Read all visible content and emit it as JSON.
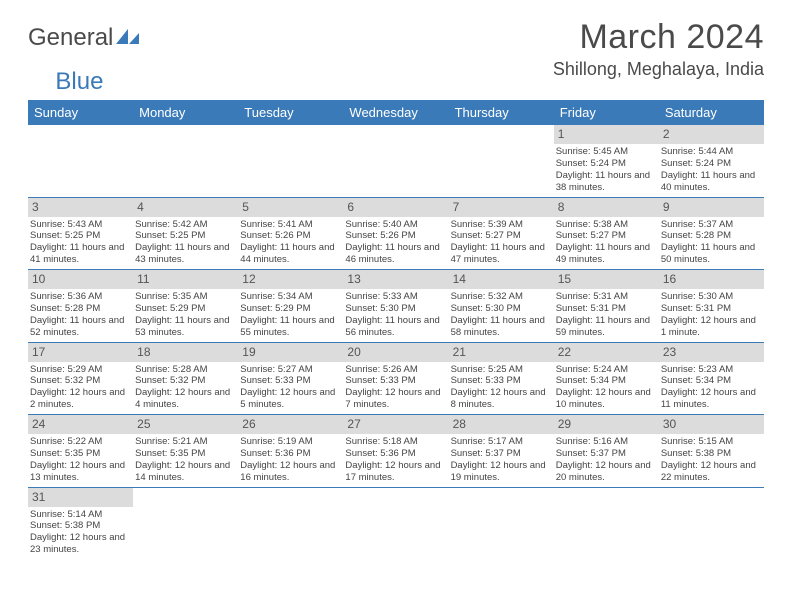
{
  "colors": {
    "header_bg": "#3a7ab8",
    "header_text": "#ffffff",
    "row_divider": "#3a7ab8",
    "daynum_bg": "#dcdcdc",
    "text": "#444444",
    "title_text": "#4a4a4a",
    "logo_blue": "#3a7ab8",
    "page_bg": "#ffffff"
  },
  "typography": {
    "font_family": "Arial, Helvetica, sans-serif",
    "month_title_size_pt": 26,
    "location_size_pt": 14,
    "dow_size_pt": 10,
    "cell_size_pt": 7,
    "daynum_size_pt": 9
  },
  "logo": {
    "line1": "General",
    "line2": "Blue"
  },
  "title": "March 2024",
  "location": "Shillong, Meghalaya, India",
  "days_of_week": [
    "Sunday",
    "Monday",
    "Tuesday",
    "Wednesday",
    "Thursday",
    "Friday",
    "Saturday"
  ],
  "weeks": [
    [
      null,
      null,
      null,
      null,
      null,
      {
        "n": "1",
        "sunrise": "Sunrise: 5:45 AM",
        "sunset": "Sunset: 5:24 PM",
        "daylight": "Daylight: 11 hours and 38 minutes."
      },
      {
        "n": "2",
        "sunrise": "Sunrise: 5:44 AM",
        "sunset": "Sunset: 5:24 PM",
        "daylight": "Daylight: 11 hours and 40 minutes."
      }
    ],
    [
      {
        "n": "3",
        "sunrise": "Sunrise: 5:43 AM",
        "sunset": "Sunset: 5:25 PM",
        "daylight": "Daylight: 11 hours and 41 minutes."
      },
      {
        "n": "4",
        "sunrise": "Sunrise: 5:42 AM",
        "sunset": "Sunset: 5:25 PM",
        "daylight": "Daylight: 11 hours and 43 minutes."
      },
      {
        "n": "5",
        "sunrise": "Sunrise: 5:41 AM",
        "sunset": "Sunset: 5:26 PM",
        "daylight": "Daylight: 11 hours and 44 minutes."
      },
      {
        "n": "6",
        "sunrise": "Sunrise: 5:40 AM",
        "sunset": "Sunset: 5:26 PM",
        "daylight": "Daylight: 11 hours and 46 minutes."
      },
      {
        "n": "7",
        "sunrise": "Sunrise: 5:39 AM",
        "sunset": "Sunset: 5:27 PM",
        "daylight": "Daylight: 11 hours and 47 minutes."
      },
      {
        "n": "8",
        "sunrise": "Sunrise: 5:38 AM",
        "sunset": "Sunset: 5:27 PM",
        "daylight": "Daylight: 11 hours and 49 minutes."
      },
      {
        "n": "9",
        "sunrise": "Sunrise: 5:37 AM",
        "sunset": "Sunset: 5:28 PM",
        "daylight": "Daylight: 11 hours and 50 minutes."
      }
    ],
    [
      {
        "n": "10",
        "sunrise": "Sunrise: 5:36 AM",
        "sunset": "Sunset: 5:28 PM",
        "daylight": "Daylight: 11 hours and 52 minutes."
      },
      {
        "n": "11",
        "sunrise": "Sunrise: 5:35 AM",
        "sunset": "Sunset: 5:29 PM",
        "daylight": "Daylight: 11 hours and 53 minutes."
      },
      {
        "n": "12",
        "sunrise": "Sunrise: 5:34 AM",
        "sunset": "Sunset: 5:29 PM",
        "daylight": "Daylight: 11 hours and 55 minutes."
      },
      {
        "n": "13",
        "sunrise": "Sunrise: 5:33 AM",
        "sunset": "Sunset: 5:30 PM",
        "daylight": "Daylight: 11 hours and 56 minutes."
      },
      {
        "n": "14",
        "sunrise": "Sunrise: 5:32 AM",
        "sunset": "Sunset: 5:30 PM",
        "daylight": "Daylight: 11 hours and 58 minutes."
      },
      {
        "n": "15",
        "sunrise": "Sunrise: 5:31 AM",
        "sunset": "Sunset: 5:31 PM",
        "daylight": "Daylight: 11 hours and 59 minutes."
      },
      {
        "n": "16",
        "sunrise": "Sunrise: 5:30 AM",
        "sunset": "Sunset: 5:31 PM",
        "daylight": "Daylight: 12 hours and 1 minute."
      }
    ],
    [
      {
        "n": "17",
        "sunrise": "Sunrise: 5:29 AM",
        "sunset": "Sunset: 5:32 PM",
        "daylight": "Daylight: 12 hours and 2 minutes."
      },
      {
        "n": "18",
        "sunrise": "Sunrise: 5:28 AM",
        "sunset": "Sunset: 5:32 PM",
        "daylight": "Daylight: 12 hours and 4 minutes."
      },
      {
        "n": "19",
        "sunrise": "Sunrise: 5:27 AM",
        "sunset": "Sunset: 5:33 PM",
        "daylight": "Daylight: 12 hours and 5 minutes."
      },
      {
        "n": "20",
        "sunrise": "Sunrise: 5:26 AM",
        "sunset": "Sunset: 5:33 PM",
        "daylight": "Daylight: 12 hours and 7 minutes."
      },
      {
        "n": "21",
        "sunrise": "Sunrise: 5:25 AM",
        "sunset": "Sunset: 5:33 PM",
        "daylight": "Daylight: 12 hours and 8 minutes."
      },
      {
        "n": "22",
        "sunrise": "Sunrise: 5:24 AM",
        "sunset": "Sunset: 5:34 PM",
        "daylight": "Daylight: 12 hours and 10 minutes."
      },
      {
        "n": "23",
        "sunrise": "Sunrise: 5:23 AM",
        "sunset": "Sunset: 5:34 PM",
        "daylight": "Daylight: 12 hours and 11 minutes."
      }
    ],
    [
      {
        "n": "24",
        "sunrise": "Sunrise: 5:22 AM",
        "sunset": "Sunset: 5:35 PM",
        "daylight": "Daylight: 12 hours and 13 minutes."
      },
      {
        "n": "25",
        "sunrise": "Sunrise: 5:21 AM",
        "sunset": "Sunset: 5:35 PM",
        "daylight": "Daylight: 12 hours and 14 minutes."
      },
      {
        "n": "26",
        "sunrise": "Sunrise: 5:19 AM",
        "sunset": "Sunset: 5:36 PM",
        "daylight": "Daylight: 12 hours and 16 minutes."
      },
      {
        "n": "27",
        "sunrise": "Sunrise: 5:18 AM",
        "sunset": "Sunset: 5:36 PM",
        "daylight": "Daylight: 12 hours and 17 minutes."
      },
      {
        "n": "28",
        "sunrise": "Sunrise: 5:17 AM",
        "sunset": "Sunset: 5:37 PM",
        "daylight": "Daylight: 12 hours and 19 minutes."
      },
      {
        "n": "29",
        "sunrise": "Sunrise: 5:16 AM",
        "sunset": "Sunset: 5:37 PM",
        "daylight": "Daylight: 12 hours and 20 minutes."
      },
      {
        "n": "30",
        "sunrise": "Sunrise: 5:15 AM",
        "sunset": "Sunset: 5:38 PM",
        "daylight": "Daylight: 12 hours and 22 minutes."
      }
    ],
    [
      {
        "n": "31",
        "sunrise": "Sunrise: 5:14 AM",
        "sunset": "Sunset: 5:38 PM",
        "daylight": "Daylight: 12 hours and 23 minutes."
      },
      null,
      null,
      null,
      null,
      null,
      null
    ]
  ]
}
